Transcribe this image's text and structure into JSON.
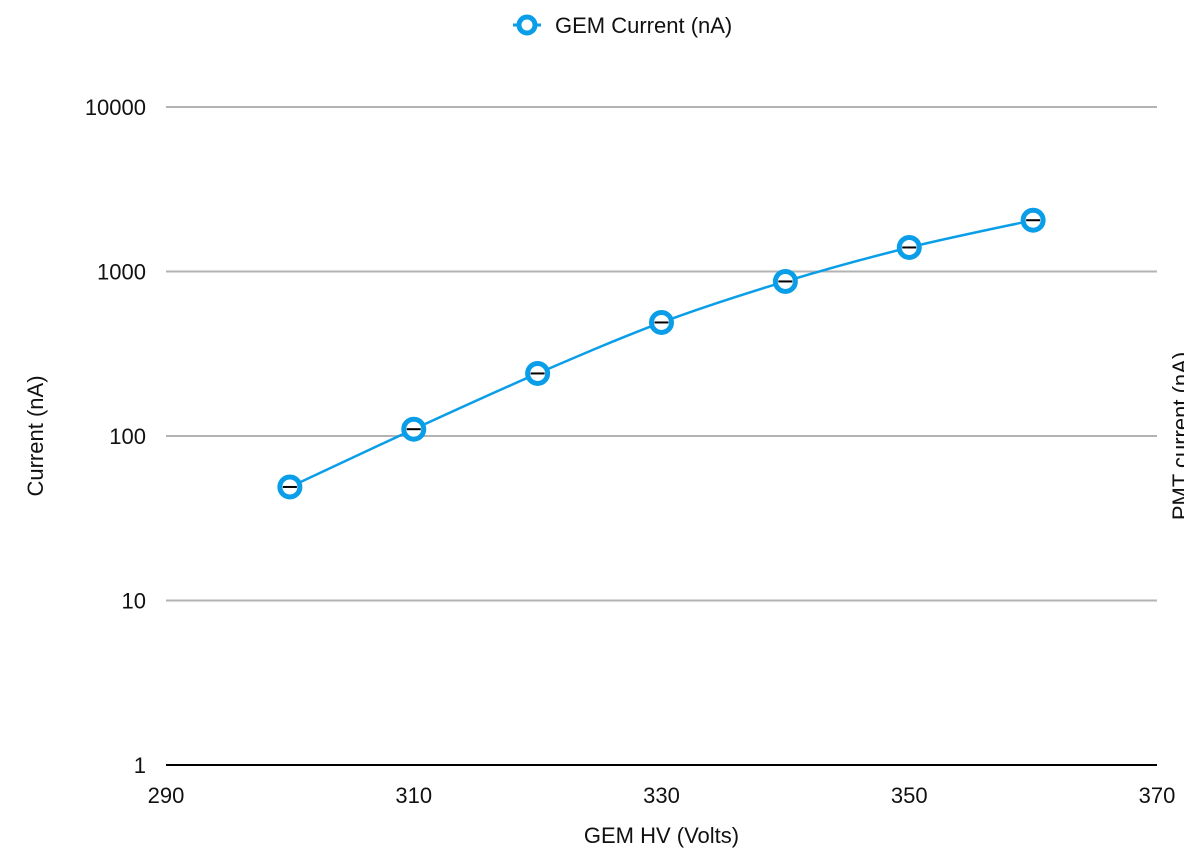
{
  "chart_data": {
    "type": "line",
    "xlabel": "GEM HV (Volts)",
    "ylabel": "Current (nA)",
    "y2label": "PMT current (nA)",
    "xlim": [
      290,
      370
    ],
    "x_ticks": [
      290,
      310,
      330,
      350,
      370
    ],
    "ylim": [
      1,
      10000
    ],
    "y_scale": "log",
    "y_ticks": [
      1,
      10,
      100,
      1000,
      10000
    ],
    "grid": "horizontal",
    "legend_position": "top-center",
    "series": [
      {
        "name": "GEM Current (nA)",
        "color": "#0a9ee8",
        "marker": "open-circle",
        "x": [
          300,
          310,
          320,
          330,
          340,
          350,
          360
        ],
        "y": [
          49,
          110,
          240,
          490,
          870,
          1400,
          2050
        ]
      }
    ]
  }
}
